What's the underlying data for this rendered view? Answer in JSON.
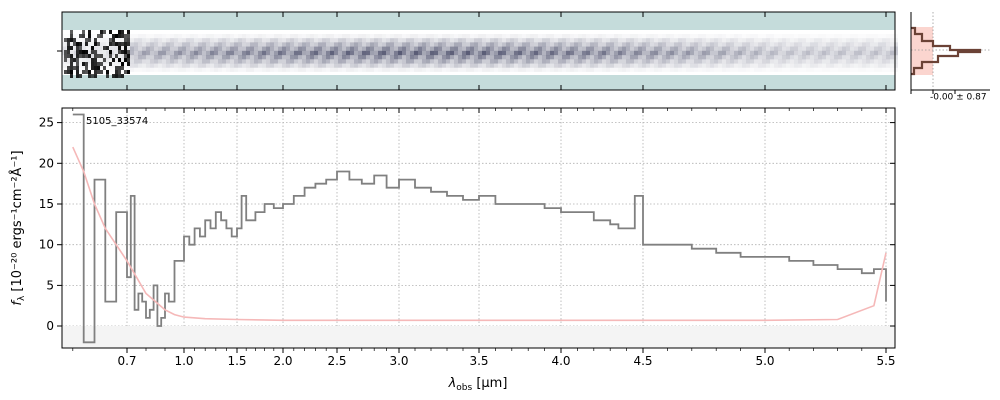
{
  "chart_data": [
    {
      "type": "heatmap",
      "panel": "2d-spectrum",
      "colormap": [
        "#c5dcdb",
        "#ffffff",
        "#3a3d5c",
        "#000000"
      ]
    },
    {
      "type": "line",
      "panel": "1d-spectrum",
      "label": "5105_33574",
      "xlabel_main": "λ",
      "xlabel_sub": "obs",
      "xlabel_unit": " [μm]",
      "ylabel_main": "f",
      "ylabel_sub": "λ",
      "ylabel_unit": " [10⁻²⁰ ergs⁻¹cm⁻²Å⁻¹]",
      "x_scale": "nonlinear (wavelength)",
      "xlim": [
        0.58,
        5.53
      ],
      "ylim": [
        -2.7,
        26.8
      ],
      "x_ticks": [
        0.7,
        1.0,
        1.5,
        2.0,
        2.5,
        3.0,
        3.5,
        4.0,
        4.5,
        5.0,
        5.5
      ],
      "x_tick_labels": [
        "0.7",
        "1.0",
        "1.5",
        "2.0",
        "2.5",
        "3.0",
        "3.5",
        "4.0",
        "4.5",
        "5.0",
        "5.5"
      ],
      "y_ticks": [
        0,
        5,
        10,
        15,
        20,
        25
      ],
      "y_tick_labels": [
        "0",
        "5",
        "10",
        "15",
        "20",
        "25"
      ],
      "grid": true,
      "series": [
        {
          "color": "#808080",
          "step": true,
          "x": [
            0.6,
            0.62,
            0.64,
            0.66,
            0.68,
            0.7,
            0.72,
            0.74,
            0.76,
            0.78,
            0.8,
            0.82,
            0.84,
            0.86,
            0.88,
            0.9,
            0.92,
            0.95,
            1.0,
            1.05,
            1.1,
            1.15,
            1.2,
            1.25,
            1.3,
            1.35,
            1.4,
            1.45,
            1.5,
            1.55,
            1.6,
            1.7,
            1.8,
            1.9,
            2.0,
            2.1,
            2.2,
            2.3,
            2.4,
            2.5,
            2.6,
            2.7,
            2.8,
            2.9,
            3.0,
            3.1,
            3.2,
            3.3,
            3.4,
            3.5,
            3.6,
            3.7,
            3.8,
            3.9,
            4.0,
            4.1,
            4.2,
            4.3,
            4.35,
            4.4,
            4.45,
            4.5,
            4.6,
            4.7,
            4.8,
            4.9,
            5.0,
            5.1,
            5.2,
            5.3,
            5.4,
            5.45,
            5.5
          ],
          "y": [
            26,
            -2,
            18,
            3,
            14,
            6,
            16,
            2,
            4,
            3,
            1,
            2,
            5,
            0,
            1,
            4,
            3,
            8,
            11,
            10,
            12,
            11,
            13,
            12,
            14,
            13,
            12,
            11,
            12,
            16,
            13,
            14,
            15,
            14.5,
            15,
            16,
            17,
            17.5,
            18,
            19,
            18,
            17.5,
            18.5,
            17,
            18,
            17,
            16.5,
            16,
            15.5,
            16,
            15,
            15,
            15,
            14.5,
            14,
            14,
            13,
            12.5,
            12,
            12,
            16,
            10,
            10,
            9.5,
            9,
            8.5,
            8.5,
            8,
            7.5,
            7,
            6.5,
            7,
            3
          ]
        },
        {
          "color": "#f5b8b8",
          "step": false,
          "x": [
            0.6,
            0.62,
            0.64,
            0.66,
            0.68,
            0.7,
            0.75,
            0.8,
            0.85,
            0.9,
            0.95,
            1.0,
            1.2,
            1.5,
            2.0,
            3.0,
            4.0,
            5.0,
            5.3,
            5.45,
            5.5
          ],
          "y": [
            22,
            19,
            15,
            12,
            10,
            8,
            6,
            4,
            3,
            2,
            1.4,
            1.1,
            0.9,
            0.8,
            0.7,
            0.7,
            0.7,
            0.7,
            0.8,
            2.5,
            9
          ]
        }
      ]
    },
    {
      "type": "bar",
      "panel": "profile-inset",
      "stat_label": "-0.00 ± 0.87"
    }
  ]
}
